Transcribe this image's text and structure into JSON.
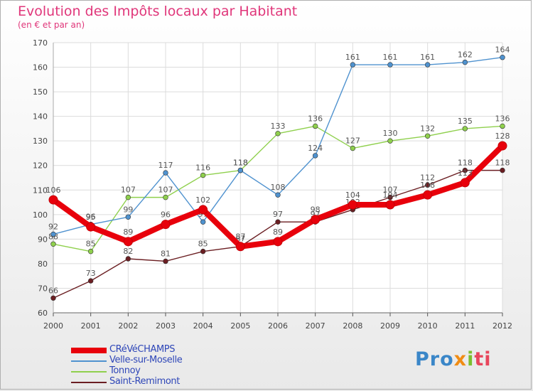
{
  "chart_data": {
    "type": "line",
    "title": "Evolution des Impôts locaux par Habitant",
    "subtitle": "(en € et par an)",
    "xlabel": "",
    "ylabel": "",
    "categories": [
      "2000",
      "2001",
      "2002",
      "2003",
      "2004",
      "2005",
      "2006",
      "2007",
      "2008",
      "2009",
      "2010",
      "2011",
      "2012"
    ],
    "ylim": [
      60,
      170
    ],
    "yticks": [
      60,
      70,
      80,
      90,
      100,
      110,
      120,
      130,
      140,
      150,
      160,
      170
    ],
    "grid": true,
    "legend": "bottom-left",
    "series": [
      {
        "name": "CRéVéCHAMPS",
        "color": "#e8000b",
        "values": [
          106,
          95,
          89,
          96,
          102,
          87,
          89,
          98,
          104,
          104,
          108,
          113,
          128
        ]
      },
      {
        "name": "Velle-sur-Moselle",
        "color": "#4f92cf",
        "values": [
          92,
          96,
          99,
          117,
          97,
          118,
          108,
          124,
          161,
          161,
          161,
          162,
          164
        ]
      },
      {
        "name": "Tonnoy",
        "color": "#8fd04d",
        "values": [
          88,
          85,
          107,
          107,
          116,
          118,
          133,
          136,
          127,
          130,
          132,
          135,
          136
        ]
      },
      {
        "name": "Saint-Remimont",
        "color": "#6b1e22",
        "values": [
          66,
          73,
          82,
          81,
          85,
          87,
          97,
          97,
          102,
          107,
          112,
          118,
          118
        ]
      }
    ]
  },
  "logo": {
    "part1": "Pro",
    "part2": "x",
    "part3": "i",
    "part4": "ti"
  }
}
